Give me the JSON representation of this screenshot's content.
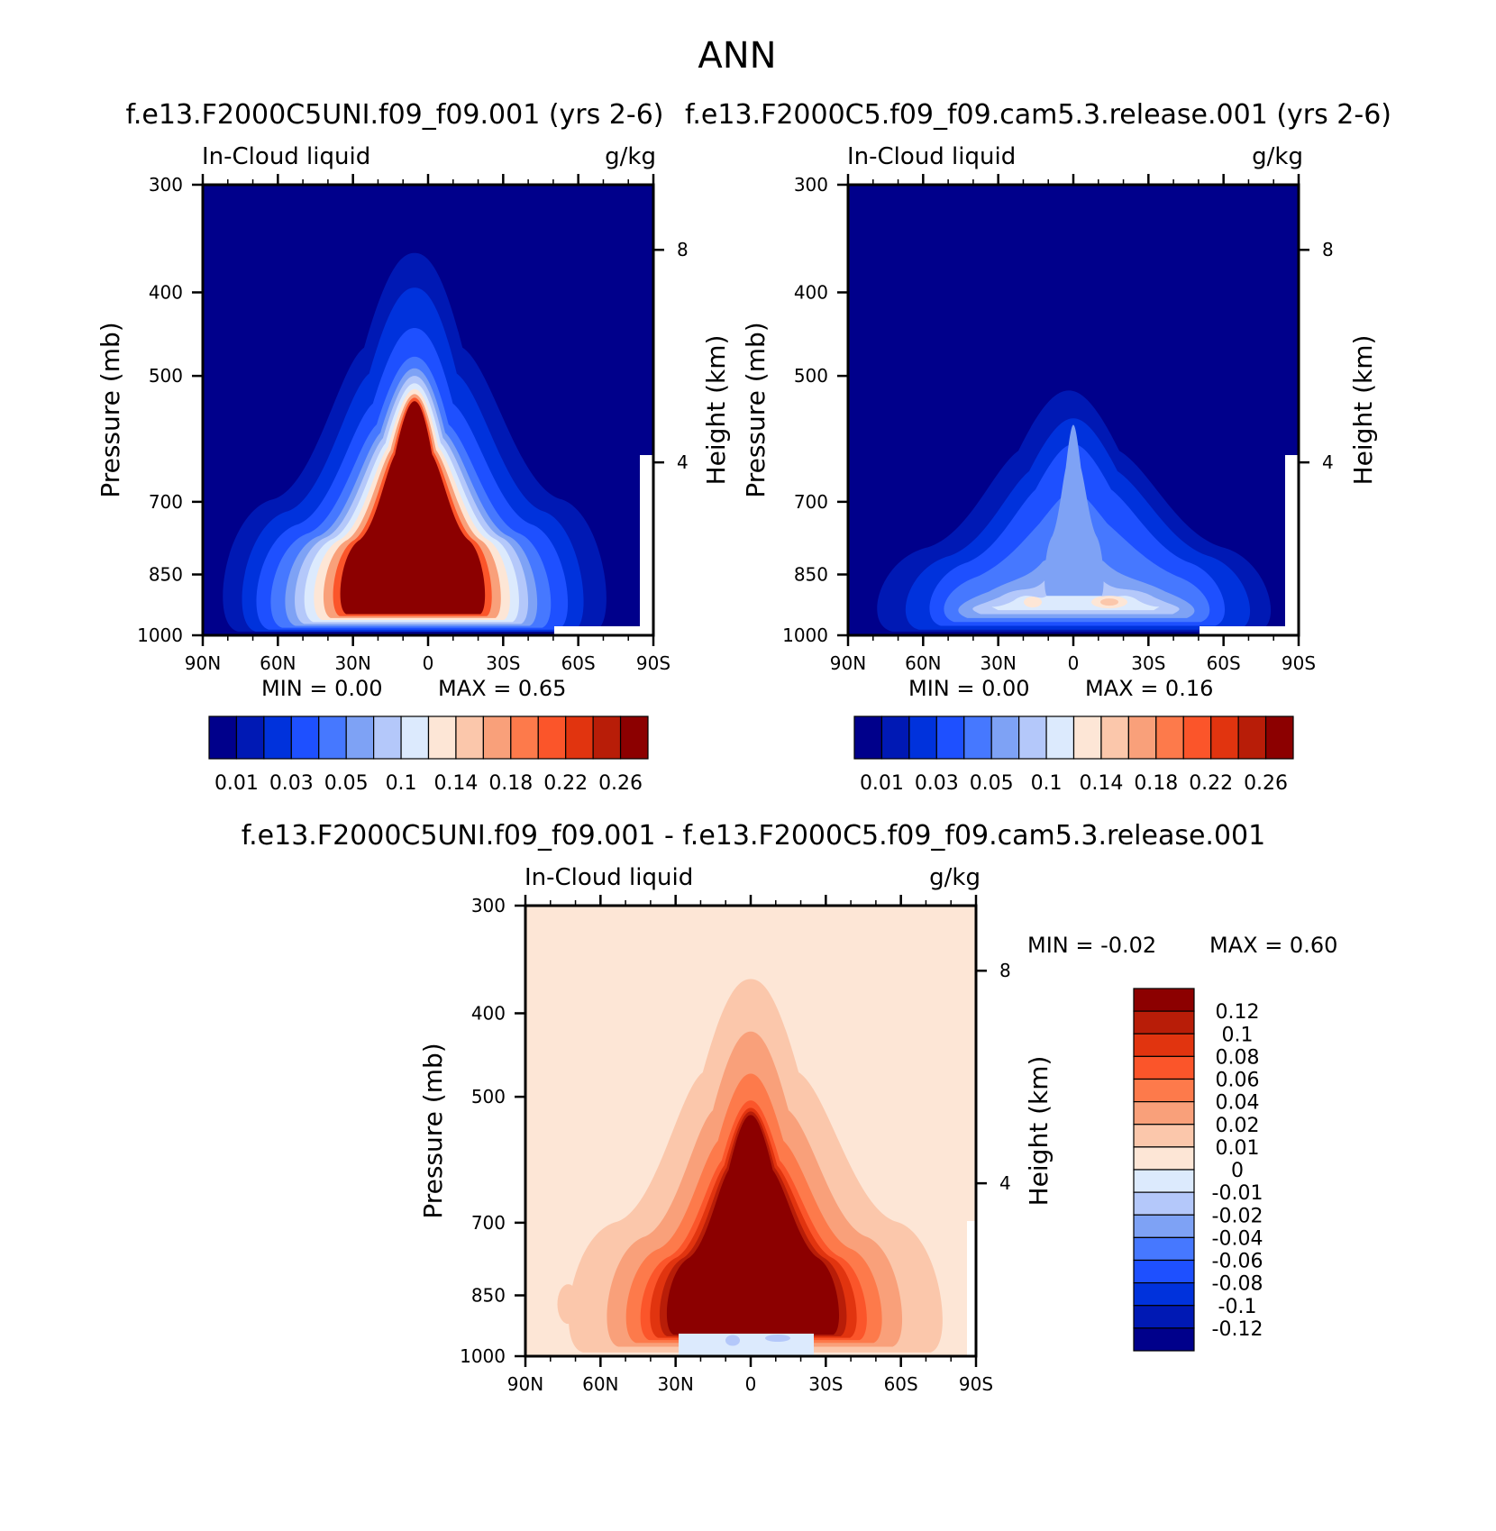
{
  "figure": {
    "main_title": "ANN",
    "units": "g/kg"
  },
  "chart_data": [
    {
      "type": "heatmap",
      "title": "f.e13.F2000C5UNI.f09_f09.001 (yrs 2-6)",
      "variable_label": "In-Cloud liquid",
      "units": "g/kg",
      "xlabel": "",
      "ylabel": "Pressure (mb)",
      "ylabel_right": "Height (km)",
      "x_ticks": [
        "90N",
        "60N",
        "30N",
        "0",
        "30S",
        "60S",
        "90S"
      ],
      "y_ticks": [
        "300",
        "400",
        "500",
        "700",
        "850",
        "1000"
      ],
      "y_ticks_right": [
        "8",
        "4"
      ],
      "ylim": [
        1000,
        300
      ],
      "min_text": "MIN = 0.00",
      "max_text": "MAX = 0.65",
      "min": 0.0,
      "max": 0.65,
      "colorbar_levels": [
        "0.01",
        "0.03",
        "0.05",
        "0.1",
        "0.14",
        "0.18",
        "0.22",
        "0.26"
      ],
      "colors": [
        "#00008b",
        "#0019b4",
        "#0032dc",
        "#1e50ff",
        "#4678ff",
        "#7ea2f5",
        "#b4c8fa",
        "#dceafd",
        "#fde6d6",
        "#fbc7ab",
        "#f9a07a",
        "#fd7a4b",
        "#fb552a",
        "#e1340f",
        "#b81d08",
        "#8c0000"
      ],
      "peak_level_index": 15
    },
    {
      "type": "heatmap",
      "title": "f.e13.F2000C5.f09_f09.cam5.3.release.001 (yrs 2-6)",
      "variable_label": "In-Cloud liquid",
      "units": "g/kg",
      "xlabel": "",
      "ylabel": "Pressure (mb)",
      "ylabel_right": "Height (km)",
      "x_ticks": [
        "90N",
        "60N",
        "30N",
        "0",
        "30S",
        "60S",
        "90S"
      ],
      "y_ticks": [
        "300",
        "400",
        "500",
        "700",
        "850",
        "1000"
      ],
      "y_ticks_right": [
        "8",
        "4"
      ],
      "ylim": [
        1000,
        300
      ],
      "min_text": "MIN = 0.00",
      "max_text": "MAX = 0.16",
      "min": 0.0,
      "max": 0.16,
      "colorbar_levels": [
        "0.01",
        "0.03",
        "0.05",
        "0.1",
        "0.14",
        "0.18",
        "0.22",
        "0.26"
      ],
      "colors": [
        "#00008b",
        "#0019b4",
        "#0032dc",
        "#1e50ff",
        "#4678ff",
        "#7ea2f5",
        "#b4c8fa",
        "#dceafd",
        "#fde6d6",
        "#fbc7ab",
        "#f9a07a",
        "#fd7a4b",
        "#fb552a",
        "#e1340f",
        "#b81d08",
        "#8c0000"
      ],
      "peak_level_index": 9
    },
    {
      "type": "heatmap",
      "title": "f.e13.F2000C5UNI.f09_f09.001 - f.e13.F2000C5.f09_f09.cam5.3.release.001",
      "variable_label": "In-Cloud liquid",
      "units": "g/kg",
      "xlabel": "",
      "ylabel": "Pressure (mb)",
      "ylabel_right": "Height (km)",
      "x_ticks": [
        "90N",
        "60N",
        "30N",
        "0",
        "30S",
        "60S",
        "90S"
      ],
      "y_ticks": [
        "300",
        "400",
        "500",
        "700",
        "850",
        "1000"
      ],
      "y_ticks_right": [
        "8",
        "4"
      ],
      "ylim": [
        1000,
        300
      ],
      "min_text": "MIN = -0.02",
      "max_text": "MAX = 0.60",
      "min": -0.02,
      "max": 0.6,
      "colorbar_levels": [
        "0.12",
        "0.1",
        "0.08",
        "0.06",
        "0.04",
        "0.02",
        "0.01",
        "0",
        "-0.01",
        "-0.02",
        "-0.04",
        "-0.06",
        "-0.08",
        "-0.1",
        "-0.12"
      ],
      "colors": [
        "#8c0000",
        "#b81d08",
        "#e1340f",
        "#fb552a",
        "#fd7a4b",
        "#f9a07a",
        "#fbc7ab",
        "#fde6d6",
        "#dceafd",
        "#b4c8fa",
        "#7ea2f5",
        "#4678ff",
        "#1e50ff",
        "#0032dc",
        "#0019b4",
        "#00008b"
      ],
      "background_color": "#fde6d6",
      "diff_colors": [
        "#fde6d6",
        "#fbc7ab",
        "#f9a07a",
        "#fd7a4b",
        "#fb552a",
        "#e1340f",
        "#b81d08",
        "#8c0000"
      ]
    }
  ]
}
